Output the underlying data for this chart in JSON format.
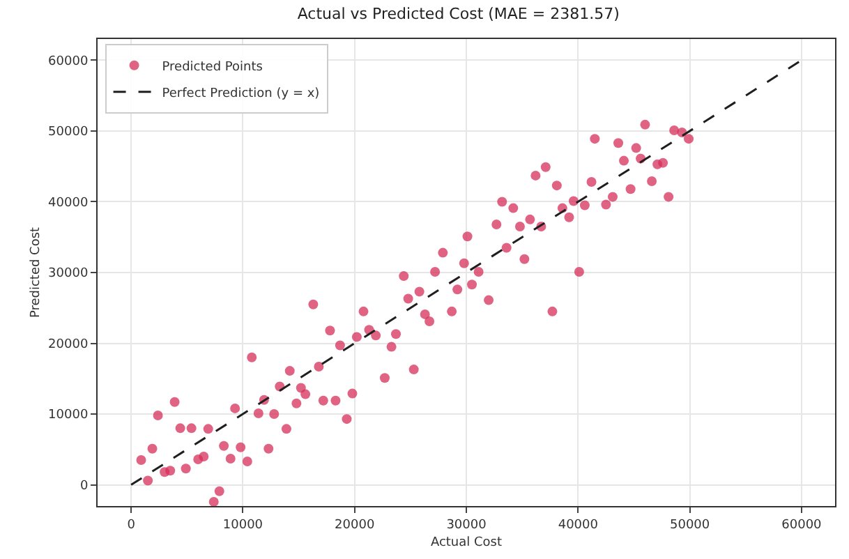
{
  "chart_data": {
    "type": "scatter",
    "title": "Actual vs Predicted Cost (MAE = 2381.57)",
    "xlabel": "Actual Cost",
    "ylabel": "Predicted Cost",
    "xlim": [
      -3000,
      63000
    ],
    "ylim": [
      -3000,
      63000
    ],
    "xticks": [
      0,
      10000,
      20000,
      30000,
      40000,
      50000,
      60000
    ],
    "yticks": [
      0,
      10000,
      20000,
      30000,
      40000,
      50000,
      60000
    ],
    "grid": true,
    "legend": "top left",
    "series": [
      {
        "name": "Predicted Points",
        "marker": "circle",
        "color": "#d62f5a",
        "x": [
          900,
          1500,
          1900,
          2400,
          3000,
          3500,
          3900,
          4400,
          4900,
          5400,
          6000,
          6500,
          6900,
          7400,
          7900,
          8300,
          8900,
          9300,
          9800,
          10400,
          10800,
          11400,
          11900,
          12300,
          12800,
          13300,
          13900,
          14200,
          14800,
          15200,
          15600,
          16300,
          16800,
          17200,
          17800,
          18300,
          18700,
          19300,
          19800,
          20200,
          20800,
          21300,
          21900,
          22700,
          23300,
          23700,
          24400,
          24800,
          25300,
          25800,
          26300,
          26700,
          27200,
          27900,
          28700,
          29200,
          29800,
          30500,
          30100,
          31100,
          32000,
          32700,
          33200,
          33600,
          34200,
          34800,
          35200,
          35700,
          36200,
          36700,
          37100,
          37700,
          38100,
          38600,
          39200,
          39600,
          40100,
          40600,
          41200,
          41500,
          42500,
          43100,
          43600,
          44100,
          44700,
          45200,
          45600,
          46000,
          46600,
          47100,
          47600,
          48100,
          48600,
          49300,
          49900
        ],
        "values": [
          3500,
          600,
          5100,
          9800,
          1800,
          2000,
          11700,
          8000,
          2300,
          8000,
          3600,
          4000,
          7900,
          -2400,
          -900,
          5500,
          3700,
          10800,
          5300,
          3300,
          18000,
          10100,
          12000,
          5100,
          10000,
          13900,
          7900,
          16100,
          11500,
          13700,
          12800,
          25500,
          16700,
          11900,
          21800,
          11900,
          19700,
          9300,
          12900,
          20900,
          24500,
          21900,
          21100,
          15100,
          19500,
          21300,
          29500,
          26300,
          16300,
          27300,
          24100,
          23100,
          30100,
          32800,
          24500,
          27600,
          31300,
          28300,
          35100,
          30100,
          26100,
          36800,
          40000,
          33500,
          39100,
          36500,
          31900,
          37500,
          43700,
          36500,
          44900,
          24500,
          42300,
          39100,
          37800,
          40100,
          30100,
          39500,
          42800,
          48900,
          39600,
          40700,
          48300,
          45800,
          41800,
          47600,
          46100,
          50900,
          42900,
          45300,
          45500,
          40700,
          50100,
          49800,
          48900
        ]
      },
      {
        "name": "Perfect Prediction (y = x)",
        "type": "line",
        "line_style": "dashed",
        "marker": "none",
        "color": "#1f1f1f",
        "x": [
          0,
          60000
        ],
        "values": [
          0,
          60000
        ]
      }
    ]
  }
}
